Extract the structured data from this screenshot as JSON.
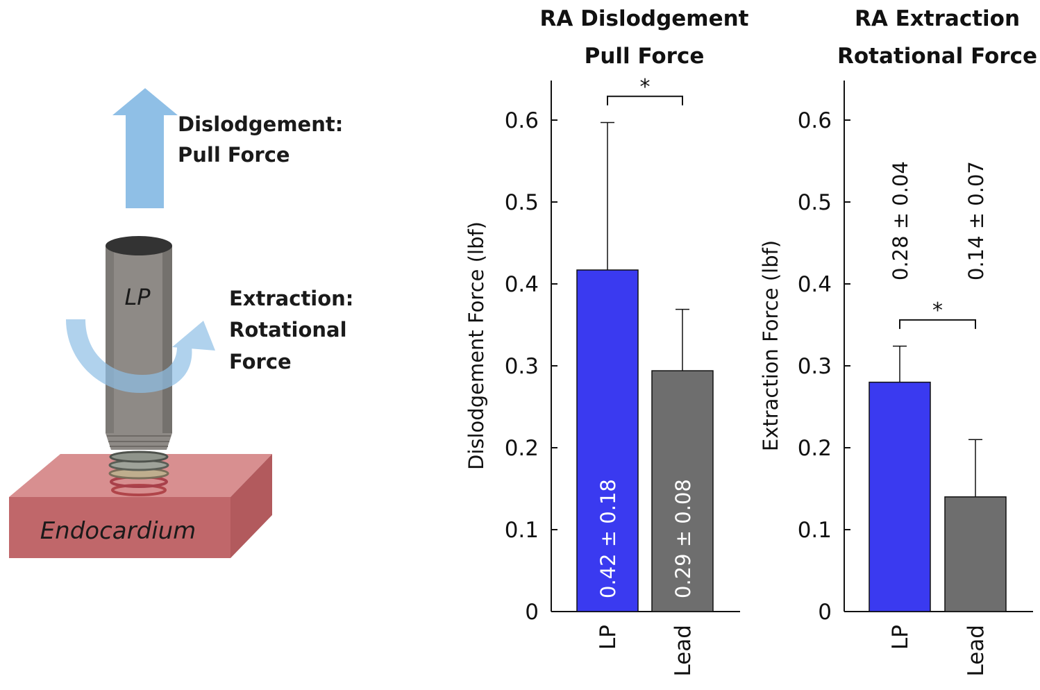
{
  "colors": {
    "lp_bar": "#3a3af0",
    "lead_bar": "#6e6e6e",
    "arrow": "#8fbfe6",
    "device_body": "#8e8a86",
    "device_top": "#333333",
    "tissue_front": "#c0676a",
    "tissue_top": "#d88f90",
    "tissue_side": "#b25a5d"
  },
  "illustration": {
    "pull_label_line1": "Dislodgement:",
    "pull_label_line2": "Pull Force",
    "rot_label_line1": "Extraction:",
    "rot_label_line2": "Rotational",
    "rot_label_line3": "Force",
    "device_label": "LP",
    "tissue_label": "Endocardium"
  },
  "chart_data": [
    {
      "type": "bar",
      "title_line1": "RA Dislodgement",
      "title_line2": "Pull Force",
      "ylabel": "Dislodgement Force (lbf)",
      "ylim": [
        0,
        0.65
      ],
      "yticks": [
        0,
        0.1,
        0.2,
        0.3,
        0.4,
        0.5,
        0.6
      ],
      "ytick_labels": [
        "0",
        "0.1",
        "0.2",
        "0.3",
        "0.4",
        "0.5",
        "0.6"
      ],
      "categories": [
        "LP",
        "Lead"
      ],
      "values": [
        0.417,
        0.294
      ],
      "errors": [
        0.18,
        0.075
      ],
      "value_labels": [
        "0.42 ± 0.18",
        "0.29 ± 0.08"
      ],
      "value_label_position": "inside",
      "significance": {
        "label": "*",
        "y": 0.629
      }
    },
    {
      "type": "bar",
      "title_line1": "RA Extraction",
      "title_line2": "Rotational Force",
      "ylabel": "Extraction Force (lbf)",
      "ylim": [
        0,
        0.65
      ],
      "yticks": [
        0,
        0.1,
        0.2,
        0.3,
        0.4,
        0.5,
        0.6
      ],
      "ytick_labels": [
        "0",
        "0.1",
        "0.2",
        "0.3",
        "0.4",
        "0.5",
        "0.6"
      ],
      "categories": [
        "LP",
        "Lead"
      ],
      "values": [
        0.28,
        0.14
      ],
      "errors": [
        0.044,
        0.07
      ],
      "value_labels": [
        "0.28 ± 0.04",
        "0.14 ± 0.07"
      ],
      "value_label_position": "above",
      "significance": {
        "label": "*",
        "y": 0.356
      }
    }
  ]
}
